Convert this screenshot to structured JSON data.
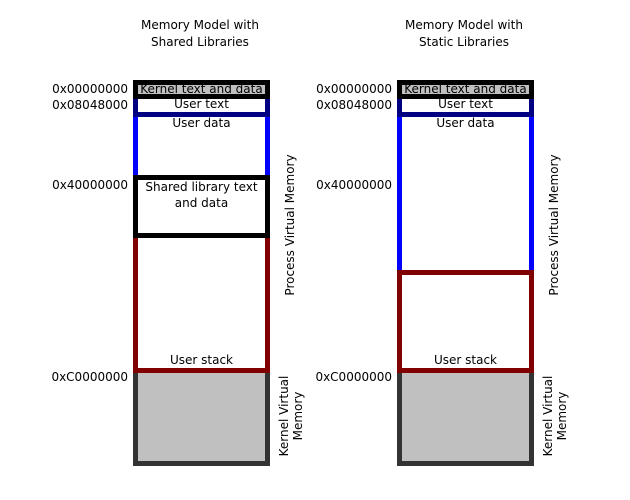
{
  "colors": {
    "kernel": "#000000",
    "user_text": "#000080",
    "user_data": "#0000ff",
    "shared_lib": "#000000",
    "stack": "#800000",
    "kernel_vm": "#333333",
    "gray_fill": "#c0c0c0"
  },
  "left": {
    "title_line1": "Memory Model with",
    "title_line2": "Shared Libraries",
    "addresses": [
      "0x00000000",
      "0x08048000",
      "0x40000000",
      "0xC0000000"
    ],
    "segments": {
      "kernel_text": "Kernel text and data",
      "user_text": "User text",
      "user_data": "User data",
      "shared_lib_1": "Shared library text",
      "shared_lib_2": "and data",
      "user_stack": "User stack"
    },
    "process_vm": "Process Virtual Memory",
    "kernel_vm_1": "Kernel Virtual",
    "kernel_vm_2": "Memory"
  },
  "right": {
    "title_line1": "Memory Model with",
    "title_line2": "Static Libraries",
    "addresses": [
      "0x00000000",
      "0x08048000",
      "0x40000000",
      "0xC0000000"
    ],
    "segments": {
      "kernel_text": "Kernel text and data",
      "user_text": "User text",
      "user_data": "User data",
      "user_stack": "User stack"
    },
    "process_vm": "Process Virtual Memory",
    "kernel_vm_1": "Kernel Virtual",
    "kernel_vm_2": "Memory"
  }
}
